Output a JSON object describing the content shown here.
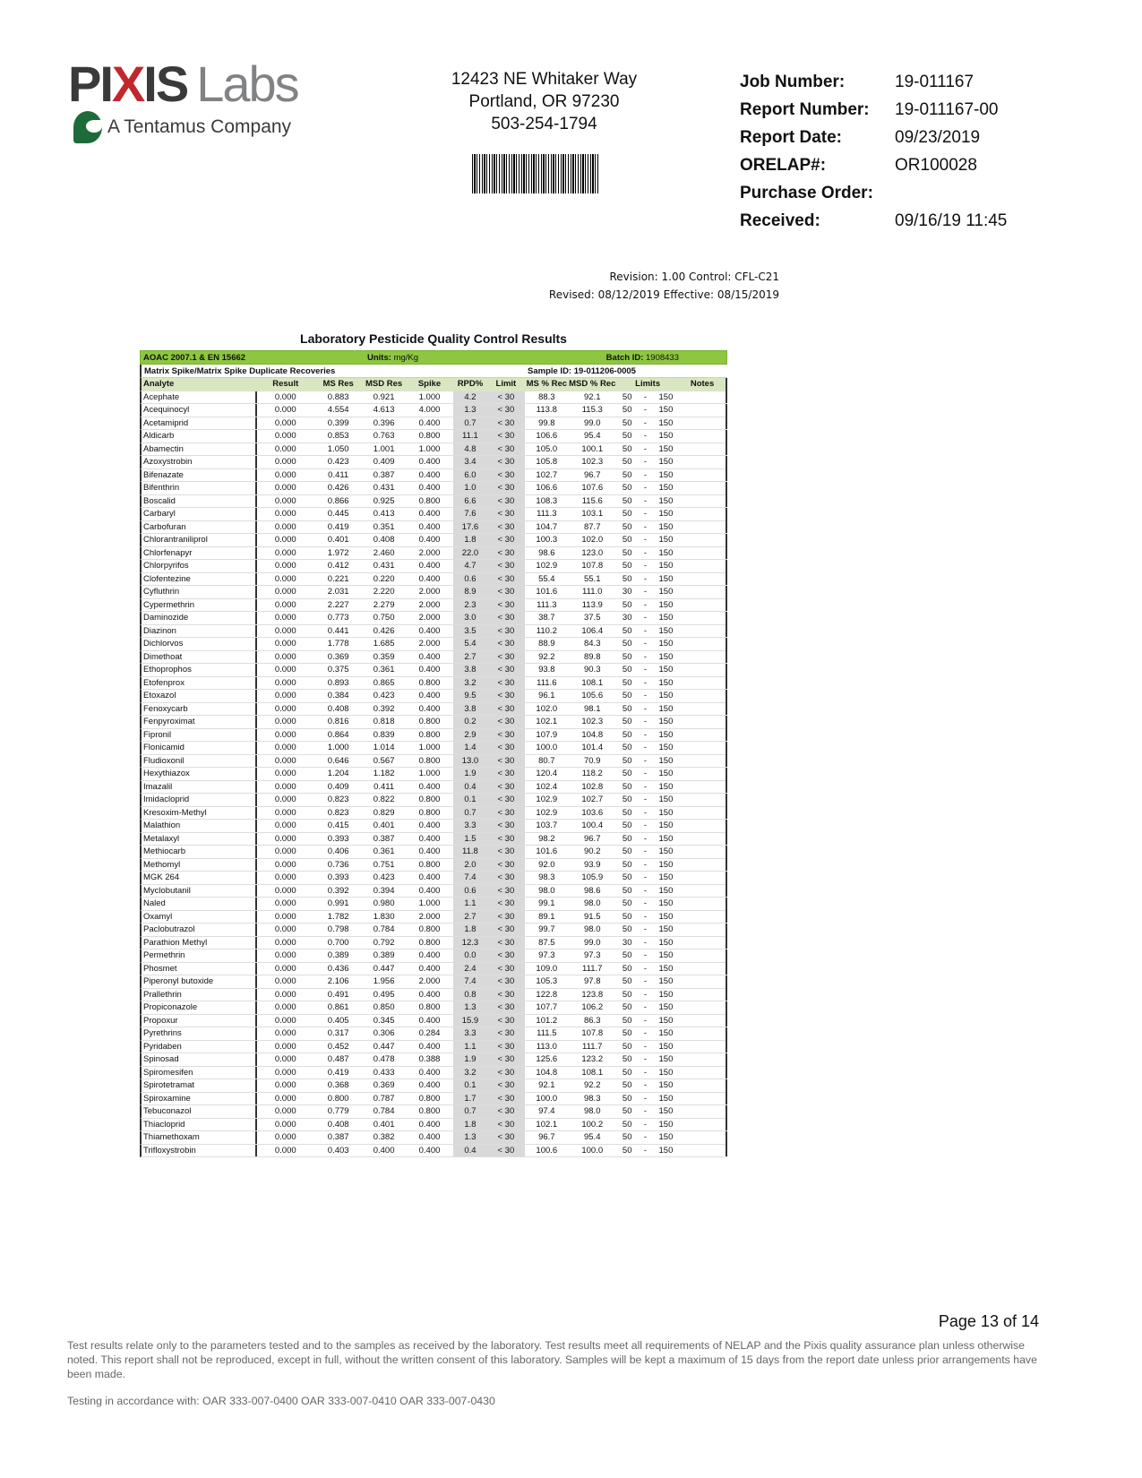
{
  "logo": {
    "p1": "PI",
    "x": "X",
    "p2": "IS",
    "labs": "Labs",
    "tagline": "A Tentamus Company"
  },
  "address": [
    "12423 NE Whitaker Way",
    "Portland, OR 97230",
    "503-254-1794"
  ],
  "job_info": [
    {
      "label": "Job Number:",
      "value": "19-011167"
    },
    {
      "label": "Report Number:",
      "value": "19-011167-00"
    },
    {
      "label": "Report Date:",
      "value": "09/23/2019"
    },
    {
      "label": "ORELAP#:",
      "value": "OR100028"
    },
    {
      "label": "Purchase Order:",
      "value": ""
    },
    {
      "label": "Received:",
      "value": "09/16/19  11:45"
    }
  ],
  "revision": {
    "line1": "Revision: 1.00 Control: CFL-C21",
    "line2": "Revised: 08/12/2019 Effective: 08/15/2019"
  },
  "table": {
    "title": "Laboratory Pesticide Quality Control Results",
    "method": "AOAC 2007.1 & EN 15662",
    "units_label": "Units:",
    "units": "mg/Kg",
    "batch_label": "Batch ID:",
    "batch_id": "1908433",
    "section": "Matrix Spike/Matrix Spike Duplicate Recoveries",
    "sample_label": "Sample ID:",
    "sample_id": "19-011206-0005",
    "columns": [
      "Analyte",
      "Result",
      "MS Res",
      "MSD Res",
      "Spike",
      "RPD%",
      "Limit",
      "MS % Rec",
      "MSD % Rec",
      "Limits",
      "Notes"
    ],
    "rows": [
      [
        "Acephate",
        "0.000",
        "0.883",
        "0.921",
        "1.000",
        "4.2",
        "< 30",
        "88.3",
        "92.1",
        "50",
        "150"
      ],
      [
        "Acequinocyl",
        "0.000",
        "4.554",
        "4.613",
        "4.000",
        "1.3",
        "< 30",
        "113.8",
        "115.3",
        "50",
        "150"
      ],
      [
        "Acetamiprid",
        "0.000",
        "0.399",
        "0.396",
        "0.400",
        "0.7",
        "< 30",
        "99.8",
        "99.0",
        "50",
        "150"
      ],
      [
        "Aldicarb",
        "0.000",
        "0.853",
        "0.763",
        "0.800",
        "11.1",
        "< 30",
        "106.6",
        "95.4",
        "50",
        "150"
      ],
      [
        "Abamectin",
        "0.000",
        "1.050",
        "1.001",
        "1.000",
        "4.8",
        "< 30",
        "105.0",
        "100.1",
        "50",
        "150"
      ],
      [
        "Azoxystrobin",
        "0.000",
        "0.423",
        "0.409",
        "0.400",
        "3.4",
        "< 30",
        "105.8",
        "102.3",
        "50",
        "150"
      ],
      [
        "Bifenazate",
        "0.000",
        "0.411",
        "0.387",
        "0.400",
        "6.0",
        "< 30",
        "102.7",
        "96.7",
        "50",
        "150"
      ],
      [
        "Bifenthrin",
        "0.000",
        "0.426",
        "0.431",
        "0.400",
        "1.0",
        "< 30",
        "106.6",
        "107.6",
        "50",
        "150"
      ],
      [
        "Boscalid",
        "0.000",
        "0.866",
        "0.925",
        "0.800",
        "6.6",
        "< 30",
        "108.3",
        "115.6",
        "50",
        "150"
      ],
      [
        "Carbaryl",
        "0.000",
        "0.445",
        "0.413",
        "0.400",
        "7.6",
        "< 30",
        "111.3",
        "103.1",
        "50",
        "150"
      ],
      [
        "Carbofuran",
        "0.000",
        "0.419",
        "0.351",
        "0.400",
        "17.6",
        "< 30",
        "104.7",
        "87.7",
        "50",
        "150"
      ],
      [
        "Chlorantraniliprol",
        "0.000",
        "0.401",
        "0.408",
        "0.400",
        "1.8",
        "< 30",
        "100.3",
        "102.0",
        "50",
        "150"
      ],
      [
        "Chlorfenapyr",
        "0.000",
        "1.972",
        "2.460",
        "2.000",
        "22.0",
        "< 30",
        "98.6",
        "123.0",
        "50",
        "150"
      ],
      [
        "Chlorpyrifos",
        "0.000",
        "0.412",
        "0.431",
        "0.400",
        "4.7",
        "< 30",
        "102.9",
        "107.8",
        "50",
        "150"
      ],
      [
        "Clofentezine",
        "0.000",
        "0.221",
        "0.220",
        "0.400",
        "0.6",
        "< 30",
        "55.4",
        "55.1",
        "50",
        "150"
      ],
      [
        "Cyfluthrin",
        "0.000",
        "2.031",
        "2.220",
        "2.000",
        "8.9",
        "< 30",
        "101.6",
        "111.0",
        "30",
        "150"
      ],
      [
        "Cypermethrin",
        "0.000",
        "2.227",
        "2.279",
        "2.000",
        "2.3",
        "< 30",
        "111.3",
        "113.9",
        "50",
        "150"
      ],
      [
        "Daminozide",
        "0.000",
        "0.773",
        "0.750",
        "2.000",
        "3.0",
        "< 30",
        "38.7",
        "37.5",
        "30",
        "150"
      ],
      [
        "Diazinon",
        "0.000",
        "0.441",
        "0.426",
        "0.400",
        "3.5",
        "< 30",
        "110.2",
        "106.4",
        "50",
        "150"
      ],
      [
        "Dichlorvos",
        "0.000",
        "1.778",
        "1.685",
        "2.000",
        "5.4",
        "< 30",
        "88.9",
        "84.3",
        "50",
        "150"
      ],
      [
        "Dimethoat",
        "0.000",
        "0.369",
        "0.359",
        "0.400",
        "2.7",
        "< 30",
        "92.2",
        "89.8",
        "50",
        "150"
      ],
      [
        "Ethoprophos",
        "0.000",
        "0.375",
        "0.361",
        "0.400",
        "3.8",
        "< 30",
        "93.8",
        "90.3",
        "50",
        "150"
      ],
      [
        "Etofenprox",
        "0.000",
        "0.893",
        "0.865",
        "0.800",
        "3.2",
        "< 30",
        "111.6",
        "108.1",
        "50",
        "150"
      ],
      [
        "Etoxazol",
        "0.000",
        "0.384",
        "0.423",
        "0.400",
        "9.5",
        "< 30",
        "96.1",
        "105.6",
        "50",
        "150"
      ],
      [
        "Fenoxycarb",
        "0.000",
        "0.408",
        "0.392",
        "0.400",
        "3.8",
        "< 30",
        "102.0",
        "98.1",
        "50",
        "150"
      ],
      [
        "Fenpyroximat",
        "0.000",
        "0.816",
        "0.818",
        "0.800",
        "0.2",
        "< 30",
        "102.1",
        "102.3",
        "50",
        "150"
      ],
      [
        "Fipronil",
        "0.000",
        "0.864",
        "0.839",
        "0.800",
        "2.9",
        "< 30",
        "107.9",
        "104.8",
        "50",
        "150"
      ],
      [
        "Flonicamid",
        "0.000",
        "1.000",
        "1.014",
        "1.000",
        "1.4",
        "< 30",
        "100.0",
        "101.4",
        "50",
        "150"
      ],
      [
        "Fludioxonil",
        "0.000",
        "0.646",
        "0.567",
        "0.800",
        "13.0",
        "< 30",
        "80.7",
        "70.9",
        "50",
        "150"
      ],
      [
        "Hexythiazox",
        "0.000",
        "1.204",
        "1.182",
        "1.000",
        "1.9",
        "< 30",
        "120.4",
        "118.2",
        "50",
        "150"
      ],
      [
        "Imazalil",
        "0.000",
        "0.409",
        "0.411",
        "0.400",
        "0.4",
        "< 30",
        "102.4",
        "102.8",
        "50",
        "150"
      ],
      [
        "Imidacloprid",
        "0.000",
        "0.823",
        "0.822",
        "0.800",
        "0.1",
        "< 30",
        "102.9",
        "102.7",
        "50",
        "150"
      ],
      [
        "Kresoxim-Methyl",
        "0.000",
        "0.823",
        "0.829",
        "0.800",
        "0.7",
        "< 30",
        "102.9",
        "103.6",
        "50",
        "150"
      ],
      [
        "Malathion",
        "0.000",
        "0.415",
        "0.401",
        "0.400",
        "3.3",
        "< 30",
        "103.7",
        "100.4",
        "50",
        "150"
      ],
      [
        "Metalaxyl",
        "0.000",
        "0.393",
        "0.387",
        "0.400",
        "1.5",
        "< 30",
        "98.2",
        "96.7",
        "50",
        "150"
      ],
      [
        "Methiocarb",
        "0.000",
        "0.406",
        "0.361",
        "0.400",
        "11.8",
        "< 30",
        "101.6",
        "90.2",
        "50",
        "150"
      ],
      [
        "Methomyl",
        "0.000",
        "0.736",
        "0.751",
        "0.800",
        "2.0",
        "< 30",
        "92.0",
        "93.9",
        "50",
        "150"
      ],
      [
        "MGK 264",
        "0.000",
        "0.393",
        "0.423",
        "0.400",
        "7.4",
        "< 30",
        "98.3",
        "105.9",
        "50",
        "150"
      ],
      [
        "Myclobutanil",
        "0.000",
        "0.392",
        "0.394",
        "0.400",
        "0.6",
        "< 30",
        "98.0",
        "98.6",
        "50",
        "150"
      ],
      [
        "Naled",
        "0.000",
        "0.991",
        "0.980",
        "1.000",
        "1.1",
        "< 30",
        "99.1",
        "98.0",
        "50",
        "150"
      ],
      [
        "Oxamyl",
        "0.000",
        "1.782",
        "1.830",
        "2.000",
        "2.7",
        "< 30",
        "89.1",
        "91.5",
        "50",
        "150"
      ],
      [
        "Paclobutrazol",
        "0.000",
        "0.798",
        "0.784",
        "0.800",
        "1.8",
        "< 30",
        "99.7",
        "98.0",
        "50",
        "150"
      ],
      [
        "Parathion Methyl",
        "0.000",
        "0.700",
        "0.792",
        "0.800",
        "12.3",
        "< 30",
        "87.5",
        "99.0",
        "30",
        "150"
      ],
      [
        "Permethrin",
        "0.000",
        "0.389",
        "0.389",
        "0.400",
        "0.0",
        "< 30",
        "97.3",
        "97.3",
        "50",
        "150"
      ],
      [
        "Phosmet",
        "0.000",
        "0.436",
        "0.447",
        "0.400",
        "2.4",
        "< 30",
        "109.0",
        "111.7",
        "50",
        "150"
      ],
      [
        "Piperonyl butoxide",
        "0.000",
        "2.106",
        "1.956",
        "2.000",
        "7.4",
        "< 30",
        "105.3",
        "97.8",
        "50",
        "150"
      ],
      [
        "Prallethrin",
        "0.000",
        "0.491",
        "0.495",
        "0.400",
        "0.8",
        "< 30",
        "122.8",
        "123.8",
        "50",
        "150"
      ],
      [
        "Propiconazole",
        "0.000",
        "0.861",
        "0.850",
        "0.800",
        "1.3",
        "< 30",
        "107.7",
        "106.2",
        "50",
        "150"
      ],
      [
        "Propoxur",
        "0.000",
        "0.405",
        "0.345",
        "0.400",
        "15.9",
        "< 30",
        "101.2",
        "86.3",
        "50",
        "150"
      ],
      [
        "Pyrethrins",
        "0.000",
        "0.317",
        "0.306",
        "0.284",
        "3.3",
        "< 30",
        "111.5",
        "107.8",
        "50",
        "150"
      ],
      [
        "Pyridaben",
        "0.000",
        "0.452",
        "0.447",
        "0.400",
        "1.1",
        "< 30",
        "113.0",
        "111.7",
        "50",
        "150"
      ],
      [
        "Spinosad",
        "0.000",
        "0.487",
        "0.478",
        "0.388",
        "1.9",
        "< 30",
        "125.6",
        "123.2",
        "50",
        "150"
      ],
      [
        "Spiromesifen",
        "0.000",
        "0.419",
        "0.433",
        "0.400",
        "3.2",
        "< 30",
        "104.8",
        "108.1",
        "50",
        "150"
      ],
      [
        "Spirotetramat",
        "0.000",
        "0.368",
        "0.369",
        "0.400",
        "0.1",
        "< 30",
        "92.1",
        "92.2",
        "50",
        "150"
      ],
      [
        "Spiroxamine",
        "0.000",
        "0.800",
        "0.787",
        "0.800",
        "1.7",
        "< 30",
        "100.0",
        "98.3",
        "50",
        "150"
      ],
      [
        "Tebuconazol",
        "0.000",
        "0.779",
        "0.784",
        "0.800",
        "0.7",
        "< 30",
        "97.4",
        "98.0",
        "50",
        "150"
      ],
      [
        "Thiacloprid",
        "0.000",
        "0.408",
        "0.401",
        "0.400",
        "1.8",
        "< 30",
        "102.1",
        "100.2",
        "50",
        "150"
      ],
      [
        "Thiamethoxam",
        "0.000",
        "0.387",
        "0.382",
        "0.400",
        "1.3",
        "< 30",
        "96.7",
        "95.4",
        "50",
        "150"
      ],
      [
        "Trifloxystrobin",
        "0.000",
        "0.403",
        "0.400",
        "0.400",
        "0.4",
        "< 30",
        "100.6",
        "100.0",
        "50",
        "150"
      ]
    ]
  },
  "footer": {
    "page": "Page 13 of 14",
    "disclaimer": "Test results relate only to the parameters tested and to the samples as received by the laboratory. Test results meet all requirements of NELAP and the Pixis quality assurance plan unless otherwise noted. This report shall not be reproduced, except in full, without the written consent of this laboratory. Samples will be kept a maximum of 15 days from the report date unless prior arrangements have been made.",
    "testing": "Testing in accordance with:  OAR 333-007-0400 OAR 333-007-0410  OAR 333-007-0430"
  },
  "colors": {
    "header_green": "#8dc63f",
    "column_header": "#d9e7c0",
    "rpd_shade": "#d9d9d9",
    "logo_red": "#c1272d",
    "logo_green": "#1e6b3a"
  }
}
